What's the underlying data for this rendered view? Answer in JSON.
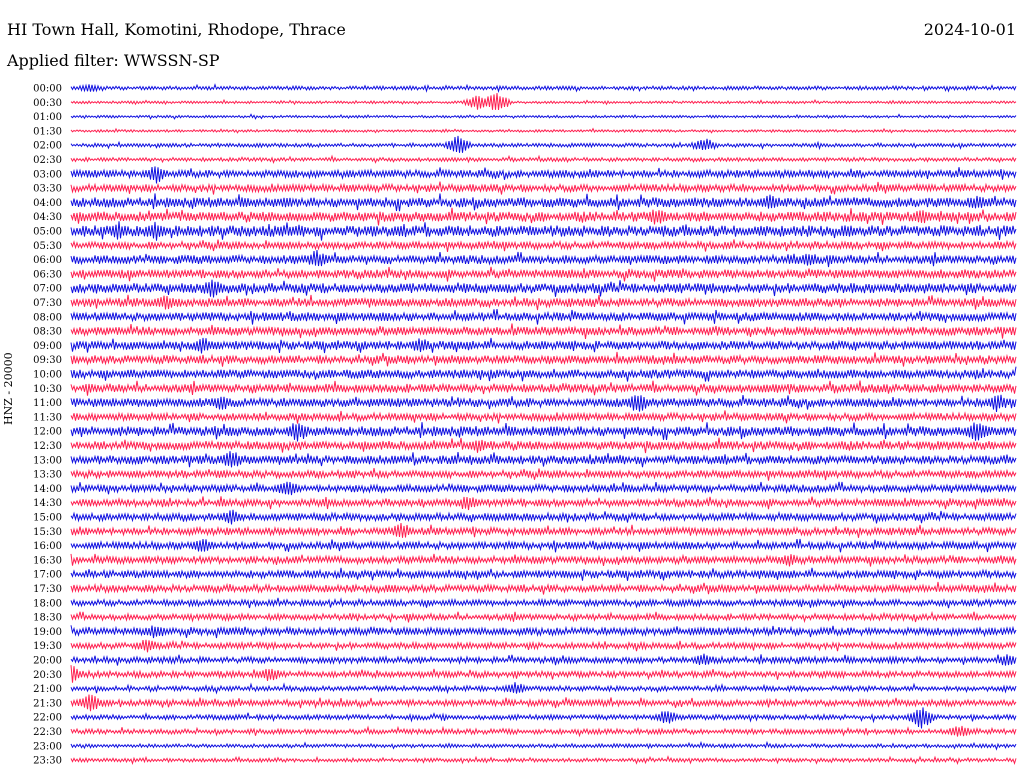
{
  "header": {
    "title": "HI Town Hall, Komotini, Rhodope, Thrace",
    "date": "2024-10-01",
    "filter": "Applied filter: WWSSN-SP"
  },
  "channel_label": "HNZ - 20000",
  "colors": {
    "even": "#1010e0",
    "odd": "#ff2050"
  },
  "chart_data": {
    "type": "line",
    "title": "HI Town Hall, Komotini, Rhodope, Thrace",
    "date": "2024-10-01",
    "filter": "WWSSN-SP",
    "ylabel": "HNZ - 20000",
    "rows": [
      "00:00",
      "00:30",
      "01:00",
      "01:30",
      "02:00",
      "02:30",
      "03:00",
      "03:30",
      "04:00",
      "04:30",
      "05:00",
      "05:30",
      "06:00",
      "06:30",
      "07:00",
      "07:30",
      "08:00",
      "08:30",
      "09:00",
      "09:30",
      "10:00",
      "10:30",
      "11:00",
      "11:30",
      "12:00",
      "12:30",
      "13:00",
      "13:30",
      "14:00",
      "14:30",
      "15:00",
      "15:30",
      "16:00",
      "16:30",
      "17:00",
      "17:30",
      "18:00",
      "18:30",
      "19:00",
      "19:30",
      "20:00",
      "20:30",
      "21:00",
      "21:30",
      "22:00",
      "22:30",
      "23:00",
      "23:30"
    ],
    "noise_level": [
      1.5,
      1,
      1,
      1,
      1.5,
      1.5,
      3,
      3,
      4,
      4,
      4.5,
      3,
      3.5,
      3.5,
      4,
      3.5,
      3.5,
      3.5,
      3.5,
      3.5,
      3.5,
      3.5,
      3.5,
      3,
      4,
      3.5,
      3.5,
      3,
      3,
      3,
      3,
      3,
      3,
      3,
      3,
      3,
      2.5,
      2.5,
      3,
      2.5,
      2.5,
      2.5,
      2,
      2.5,
      2,
      2,
      1.5,
      1.5
    ],
    "events": [
      [
        0,
        0.02,
        5
      ],
      [
        1,
        0.43,
        8
      ],
      [
        1,
        0.45,
        12
      ],
      [
        4,
        0.41,
        10
      ],
      [
        4,
        0.67,
        8
      ],
      [
        6,
        0.09,
        10
      ],
      [
        8,
        0.74,
        9
      ],
      [
        8,
        0.96,
        8
      ],
      [
        9,
        0.62,
        9
      ],
      [
        9,
        0.9,
        8
      ],
      [
        10,
        0.05,
        9
      ],
      [
        10,
        0.09,
        10
      ],
      [
        12,
        0.26,
        10
      ],
      [
        12,
        0.78,
        9
      ],
      [
        14,
        0.15,
        10
      ],
      [
        15,
        0.1,
        8
      ],
      [
        18,
        0.14,
        9
      ],
      [
        18,
        0.37,
        8
      ],
      [
        22,
        0.16,
        8
      ],
      [
        22,
        0.6,
        11
      ],
      [
        22,
        0.98,
        10
      ],
      [
        24,
        0.24,
        11
      ],
      [
        24,
        0.96,
        12
      ],
      [
        25,
        0.43,
        8
      ],
      [
        26,
        0.17,
        10
      ],
      [
        28,
        0.23,
        9
      ],
      [
        29,
        0.42,
        8
      ],
      [
        30,
        0.17,
        8
      ],
      [
        31,
        0.35,
        9
      ],
      [
        32,
        0.14,
        8
      ],
      [
        33,
        0.76,
        7
      ],
      [
        38,
        0.09,
        8
      ],
      [
        39,
        0.08,
        7
      ],
      [
        40,
        0.67,
        7
      ],
      [
        40,
        0.99,
        7
      ],
      [
        41,
        0.21,
        8
      ],
      [
        41,
        0.0,
        10
      ],
      [
        42,
        0.47,
        7
      ],
      [
        43,
        0.02,
        10
      ],
      [
        44,
        0.63,
        8
      ],
      [
        44,
        0.9,
        12
      ],
      [
        45,
        0.94,
        7
      ]
    ]
  }
}
